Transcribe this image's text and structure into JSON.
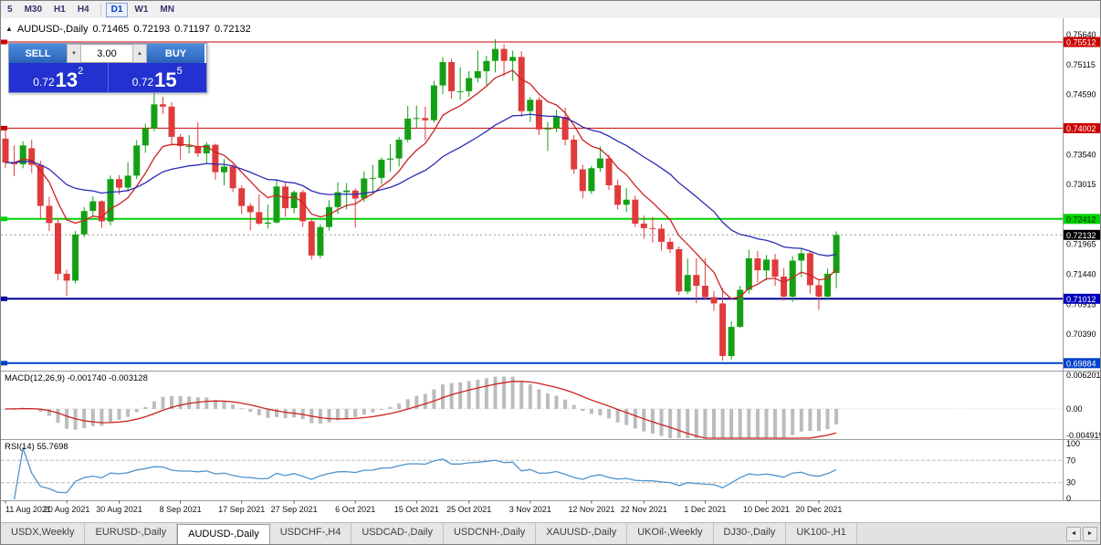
{
  "toolbar": {
    "timeframes": [
      {
        "label": "5",
        "active": false
      },
      {
        "label": "M30",
        "active": false
      },
      {
        "label": "H1",
        "active": false
      },
      {
        "label": "H4",
        "active": false
      },
      {
        "label": "D1",
        "active": true
      },
      {
        "label": "W1",
        "active": false
      },
      {
        "label": "MN",
        "active": false
      }
    ]
  },
  "chart_header": {
    "symbol": "AUDUSD-,Daily",
    "open": "0.71465",
    "high": "0.72193",
    "low": "0.71197",
    "close": "0.72132"
  },
  "trade_panel": {
    "sell_label": "SELL",
    "buy_label": "BUY",
    "volume": "3.00",
    "sell_price": {
      "whole": "0.72",
      "pips": "13",
      "pip_fraction": "2"
    },
    "buy_price": {
      "whole": "0.72",
      "pips": "15",
      "pip_fraction": "5"
    }
  },
  "icons": {
    "down_arrow": "▼",
    "up_arrow": "▲",
    "scroll_left": "◄",
    "scroll_right": "►",
    "chart_icon": "▲"
  },
  "price_axis": {
    "plain_labels": [
      "0.75640",
      "0.75115",
      "0.74590",
      "0.73540",
      "0.73015",
      "0.71965",
      "0.71440",
      "0.70915",
      "0.70390",
      "0.69865"
    ],
    "badges": [
      {
        "text": "0.75512",
        "value": 0.75512,
        "bg": "#cc0000",
        "fg": "#ffffff"
      },
      {
        "text": "0.74002",
        "value": 0.74002,
        "bg": "#cc0000",
        "fg": "#ffffff"
      },
      {
        "text": "0.72412",
        "value": 0.72412,
        "bg": "#00d400",
        "fg": "#003300"
      },
      {
        "text": "0.72132",
        "value": 0.72132,
        "bg": "#000000",
        "fg": "#ffffff"
      },
      {
        "text": "0.71012",
        "value": 0.71012,
        "bg": "#0000bb",
        "fg": "#ffffff"
      },
      {
        "text": "0.69884",
        "value": 0.69884,
        "bg": "#0040cc",
        "fg": "#ffffff"
      }
    ]
  },
  "chart_data": {
    "type": "candlestick",
    "symbol": "AUDUSD",
    "timeframe": "Daily",
    "colors": {
      "up": "#14a014",
      "down": "#df3b3b",
      "ma_fast": "#cc2222",
      "ma_slow": "#2b2bb4"
    },
    "x_ticks": [
      {
        "i": 0,
        "label": "11 Aug 2021"
      },
      {
        "i": 7,
        "label": "20 Aug 2021"
      },
      {
        "i": 13,
        "label": "30 Aug 2021"
      },
      {
        "i": 20,
        "label": "8 Sep 2021"
      },
      {
        "i": 27,
        "label": "17 Sep 2021"
      },
      {
        "i": 33,
        "label": "27 Sep 2021"
      },
      {
        "i": 40,
        "label": "6 Oct 2021"
      },
      {
        "i": 47,
        "label": "15 Oct 2021"
      },
      {
        "i": 53,
        "label": "25 Oct 2021"
      },
      {
        "i": 60,
        "label": "3 Nov 2021"
      },
      {
        "i": 67,
        "label": "12 Nov 2021"
      },
      {
        "i": 73,
        "label": "22 Nov 2021"
      },
      {
        "i": 80,
        "label": "1 Dec 2021"
      },
      {
        "i": 87,
        "label": "10 Dec 2021"
      },
      {
        "i": 93,
        "label": "20 Dec 2021"
      }
    ],
    "candles": [
      [
        0.7382,
        0.7399,
        0.7331,
        0.734
      ],
      [
        0.734,
        0.737,
        0.7316,
        0.7337
      ],
      [
        0.7337,
        0.7377,
        0.733,
        0.737
      ],
      [
        0.7365,
        0.738,
        0.7322,
        0.7336
      ],
      [
        0.7336,
        0.7343,
        0.7241,
        0.7264
      ],
      [
        0.7264,
        0.728,
        0.722,
        0.7234
      ],
      [
        0.7234,
        0.7243,
        0.7134,
        0.7145
      ],
      [
        0.7145,
        0.7152,
        0.7106,
        0.7133
      ],
      [
        0.7133,
        0.722,
        0.7128,
        0.7214
      ],
      [
        0.7214,
        0.7262,
        0.7209,
        0.7255
      ],
      [
        0.7255,
        0.7281,
        0.7246,
        0.7272
      ],
      [
        0.7272,
        0.7274,
        0.7225,
        0.7237
      ],
      [
        0.7237,
        0.7317,
        0.723,
        0.7311
      ],
      [
        0.7311,
        0.7318,
        0.7284,
        0.7296
      ],
      [
        0.7296,
        0.7341,
        0.7289,
        0.7317
      ],
      [
        0.7317,
        0.7379,
        0.7311,
        0.737
      ],
      [
        0.737,
        0.7408,
        0.7357,
        0.74
      ],
      [
        0.74,
        0.7462,
        0.7395,
        0.7442
      ],
      [
        0.7442,
        0.7455,
        0.7425,
        0.7438
      ],
      [
        0.7438,
        0.7446,
        0.737,
        0.7385
      ],
      [
        0.7385,
        0.739,
        0.7345,
        0.7369
      ],
      [
        0.7369,
        0.7388,
        0.7356,
        0.7369
      ],
      [
        0.7369,
        0.741,
        0.735,
        0.7356
      ],
      [
        0.7356,
        0.7376,
        0.7337,
        0.7371
      ],
      [
        0.7371,
        0.7373,
        0.731,
        0.7323
      ],
      [
        0.7323,
        0.7346,
        0.73,
        0.7333
      ],
      [
        0.7333,
        0.7337,
        0.7288,
        0.7295
      ],
      [
        0.7295,
        0.73,
        0.725,
        0.7264
      ],
      [
        0.7264,
        0.7269,
        0.7221,
        0.7253
      ],
      [
        0.7253,
        0.7284,
        0.7231,
        0.7233
      ],
      [
        0.7233,
        0.7266,
        0.7224,
        0.7235
      ],
      [
        0.7235,
        0.7311,
        0.7233,
        0.7298
      ],
      [
        0.7298,
        0.7305,
        0.7245,
        0.726
      ],
      [
        0.726,
        0.7291,
        0.7251,
        0.7288
      ],
      [
        0.7288,
        0.7292,
        0.7227,
        0.7237
      ],
      [
        0.7237,
        0.7242,
        0.717,
        0.7177
      ],
      [
        0.7177,
        0.7232,
        0.7172,
        0.7227
      ],
      [
        0.7227,
        0.7274,
        0.7221,
        0.7262
      ],
      [
        0.7262,
        0.7306,
        0.725,
        0.7288
      ],
      [
        0.7288,
        0.7304,
        0.7258,
        0.7291
      ],
      [
        0.7291,
        0.7295,
        0.7226,
        0.7277
      ],
      [
        0.7277,
        0.7324,
        0.7271,
        0.7312
      ],
      [
        0.7312,
        0.7336,
        0.7288,
        0.7313
      ],
      [
        0.7313,
        0.7349,
        0.7302,
        0.7345
      ],
      [
        0.7345,
        0.7372,
        0.7324,
        0.7347
      ],
      [
        0.7347,
        0.7385,
        0.7333,
        0.738
      ],
      [
        0.738,
        0.7439,
        0.7375,
        0.7417
      ],
      [
        0.7417,
        0.744,
        0.74,
        0.7418
      ],
      [
        0.7418,
        0.7438,
        0.7379,
        0.7414
      ],
      [
        0.7414,
        0.7483,
        0.741,
        0.7475
      ],
      [
        0.7475,
        0.7525,
        0.746,
        0.7516
      ],
      [
        0.7516,
        0.7522,
        0.7452,
        0.7465
      ],
      [
        0.7465,
        0.7507,
        0.745,
        0.7465
      ],
      [
        0.7465,
        0.75,
        0.7455,
        0.7488
      ],
      [
        0.7488,
        0.7536,
        0.748,
        0.75
      ],
      [
        0.75,
        0.7527,
        0.7473,
        0.7518
      ],
      [
        0.7518,
        0.7556,
        0.7498,
        0.7539
      ],
      [
        0.7539,
        0.7547,
        0.7491,
        0.7518
      ],
      [
        0.7518,
        0.7536,
        0.7483,
        0.7525
      ],
      [
        0.7525,
        0.7535,
        0.742,
        0.743
      ],
      [
        0.743,
        0.7455,
        0.7411,
        0.745
      ],
      [
        0.745,
        0.7455,
        0.7388,
        0.7398
      ],
      [
        0.7398,
        0.7411,
        0.736,
        0.74
      ],
      [
        0.74,
        0.7432,
        0.7393,
        0.742
      ],
      [
        0.742,
        0.7436,
        0.737,
        0.738
      ],
      [
        0.738,
        0.7388,
        0.732,
        0.7328
      ],
      [
        0.7328,
        0.7336,
        0.7277,
        0.729
      ],
      [
        0.729,
        0.7334,
        0.7285,
        0.733
      ],
      [
        0.733,
        0.7368,
        0.7324,
        0.7347
      ],
      [
        0.7347,
        0.7354,
        0.7292,
        0.73
      ],
      [
        0.73,
        0.731,
        0.7258,
        0.7266
      ],
      [
        0.7266,
        0.7295,
        0.7253,
        0.7275
      ],
      [
        0.7275,
        0.7282,
        0.7227,
        0.7233
      ],
      [
        0.7233,
        0.7247,
        0.7207,
        0.7225
      ],
      [
        0.7225,
        0.7245,
        0.72,
        0.7224
      ],
      [
        0.7224,
        0.7232,
        0.7186,
        0.7201
      ],
      [
        0.7201,
        0.7208,
        0.7181,
        0.7188
      ],
      [
        0.7188,
        0.7193,
        0.7108,
        0.7114
      ],
      [
        0.7114,
        0.7172,
        0.7109,
        0.7143
      ],
      [
        0.7143,
        0.7172,
        0.7093,
        0.7124
      ],
      [
        0.7124,
        0.7172,
        0.71,
        0.7104
      ],
      [
        0.7104,
        0.7115,
        0.708,
        0.7093
      ],
      [
        0.7093,
        0.712,
        0.6993,
        0.7001
      ],
      [
        0.7001,
        0.7062,
        0.6995,
        0.7052
      ],
      [
        0.7052,
        0.7124,
        0.705,
        0.7117
      ],
      [
        0.7117,
        0.7187,
        0.711,
        0.7172
      ],
      [
        0.7172,
        0.7185,
        0.713,
        0.7151
      ],
      [
        0.7151,
        0.7178,
        0.7133,
        0.717
      ],
      [
        0.717,
        0.718,
        0.7124,
        0.714
      ],
      [
        0.714,
        0.7155,
        0.7098,
        0.7105
      ],
      [
        0.7105,
        0.7176,
        0.7096,
        0.7168
      ],
      [
        0.7168,
        0.7189,
        0.7139,
        0.7181
      ],
      [
        0.7181,
        0.7184,
        0.711,
        0.7125
      ],
      [
        0.7125,
        0.7133,
        0.7082,
        0.7105
      ],
      [
        0.7105,
        0.7154,
        0.71,
        0.7145
      ],
      [
        0.71465,
        0.72193,
        0.71197,
        0.72132
      ]
    ],
    "overlays": [
      {
        "name": "ma-fast",
        "type": "ema",
        "period": 8,
        "color": "#cc2222"
      },
      {
        "name": "ma-slow",
        "type": "ema",
        "period": 26,
        "color": "#2b2bb4"
      }
    ],
    "levels": [
      {
        "value": 0.75512,
        "color": "#cc0000",
        "width": 1
      },
      {
        "value": 0.74002,
        "color": "#cc0000",
        "width": 1
      },
      {
        "value": 0.72412,
        "color": "#00d400",
        "width": 2
      },
      {
        "value": 0.71012,
        "color": "#000099",
        "width": 2
      },
      {
        "value": 0.69884,
        "color": "#0040cc",
        "width": 2
      }
    ],
    "current_price": {
      "value": 0.72132
    },
    "indicators": {
      "macd": {
        "label": "MACD(12,26,9)",
        "values": [
          "-0.001740",
          "-0.003128"
        ],
        "fast": 12,
        "slow": 26,
        "signal": 9,
        "histogram_color": "#bcbcbc",
        "signal_color": "#cc2222",
        "axis_labels": [
          "0.006201",
          "0.00",
          "-0.004919"
        ]
      },
      "rsi": {
        "label": "RSI(14)",
        "value": "55.7698",
        "period": 14,
        "color": "#4f94cd",
        "levels": [
          70,
          30
        ],
        "axis_labels": [
          "100",
          "70",
          "30",
          "0"
        ]
      }
    }
  },
  "bottom_tabs": {
    "tabs": [
      {
        "label": "USDX,Weekly",
        "active": false
      },
      {
        "label": "EURUSD-,Daily",
        "active": false
      },
      {
        "label": "AUDUSD-,Daily",
        "active": true
      },
      {
        "label": "USDCHF-,H4",
        "active": false
      },
      {
        "label": "USDCAD-,Daily",
        "active": false
      },
      {
        "label": "USDCNH-,Daily",
        "active": false
      },
      {
        "label": "XAUUSD-,Daily",
        "active": false
      },
      {
        "label": "UKOil-,Weekly",
        "active": false
      },
      {
        "label": "DJ30-,Daily",
        "active": false
      },
      {
        "label": "UK100-,H1",
        "active": false
      }
    ]
  }
}
